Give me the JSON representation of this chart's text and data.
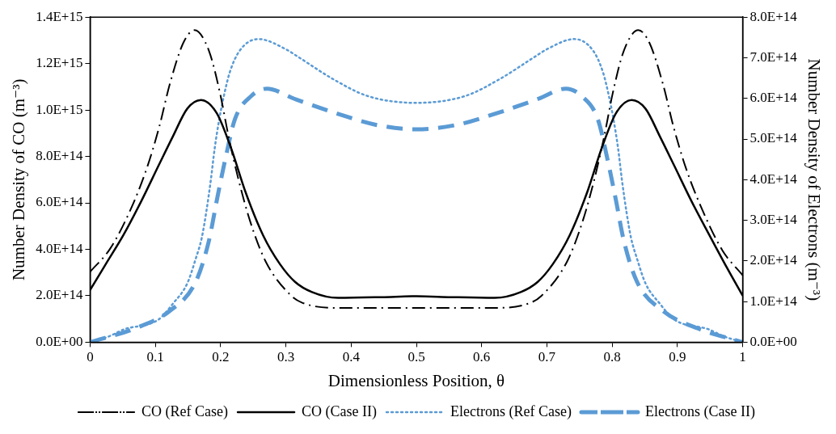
{
  "chart_data": {
    "type": "line",
    "xlabel": "Dimensionless Position, θ",
    "ylabel": "Number Density of CO (m⁻³)",
    "y2label": "Number Density of Electrons (m⁻³)",
    "legend": "bottom",
    "xlim": [
      0,
      1
    ],
    "xticks": [
      0,
      0.1,
      0.2,
      0.3,
      0.4,
      0.5,
      0.6,
      0.7,
      0.8,
      0.9,
      1
    ],
    "ylim": [
      0,
      1400000000000000.0
    ],
    "yticks": [
      {
        "value": 0,
        "label": "0.0E+00"
      },
      {
        "value": 200000000000000.0,
        "label": "2.0E+14"
      },
      {
        "value": 400000000000000.0,
        "label": "4.0E+14"
      },
      {
        "value": 600000000000000.0,
        "label": "6.0E+14"
      },
      {
        "value": 800000000000000.0,
        "label": "8.0E+14"
      },
      {
        "value": 1000000000000000.0,
        "label": "1.0E+15"
      },
      {
        "value": 1200000000000000.0,
        "label": "1.2E+15"
      },
      {
        "value": 1400000000000000.0,
        "label": "1.4E+15"
      }
    ],
    "y2lim": [
      0,
      800000000000000.0
    ],
    "y2ticks": [
      {
        "value": 0,
        "label": "0.0E+00"
      },
      {
        "value": 100000000000000.0,
        "label": "1.0E+14"
      },
      {
        "value": 200000000000000.0,
        "label": "2.0E+14"
      },
      {
        "value": 300000000000000.0,
        "label": "3.0E+14"
      },
      {
        "value": 400000000000000.0,
        "label": "4.0E+14"
      },
      {
        "value": 500000000000000.0,
        "label": "5.0E+14"
      },
      {
        "value": 600000000000000.0,
        "label": "6.0E+14"
      },
      {
        "value": 700000000000000.0,
        "label": "7.0E+14"
      },
      {
        "value": 800000000000000.0,
        "label": "8.0E+14"
      }
    ],
    "series": [
      {
        "name": "CO (Ref Case)",
        "color": "#000000",
        "line_style": "dashdot",
        "x": [
          0,
          0.031,
          0.062,
          0.087,
          0.106,
          0.122,
          0.143,
          0.16,
          0.182,
          0.199,
          0.212,
          0.227,
          0.245,
          0.269,
          0.309,
          0.325,
          0.372,
          0.5,
          0.628,
          0.675,
          0.691,
          0.731,
          0.755,
          0.773,
          0.788,
          0.801,
          0.818,
          0.84,
          0.857,
          0.878,
          0.894,
          0.913,
          0.938,
          0.969,
          1
        ],
        "values": [
          303000000000000.0,
          404000000000000.0,
          571000000000000.0,
          750000000000000.0,
          928000000000000.0,
          1110000000000000.0,
          1290000000000000.0,
          1344000000000000.0,
          1256000000000000.0,
          1074000000000000.0,
          889000000000000.0,
          705000000000000.0,
          523000000000000.0,
          348000000000000.0,
          198000000000000.0,
          170000000000000.0,
          148000000000000.0,
          148000000000000.0,
          148000000000000.0,
          170000000000000.0,
          198000000000000.0,
          348000000000000.0,
          523000000000000.0,
          705000000000000.0,
          889000000000000.0,
          1074000000000000.0,
          1256000000000000.0,
          1344000000000000.0,
          1290000000000000.0,
          1110000000000000.0,
          928000000000000.0,
          750000000000000.0,
          571000000000000.0,
          395000000000000.0,
          288000000000000.0
        ]
      },
      {
        "name": "CO (Case II)",
        "color": "#000000",
        "line_style": "solid",
        "x": [
          0,
          0.024,
          0.051,
          0.078,
          0.105,
          0.127,
          0.149,
          0.17,
          0.194,
          0.216,
          0.238,
          0.265,
          0.291,
          0.314,
          0.34,
          0.38,
          0.447,
          0.5,
          0.553,
          0.62,
          0.66,
          0.686,
          0.709,
          0.735,
          0.762,
          0.784,
          0.806,
          0.83,
          0.851,
          0.873,
          0.895,
          0.922,
          0.949,
          0.976,
          1
        ],
        "values": [
          225000000000000.0,
          336000000000000.0,
          461000000000000.0,
          605000000000000.0,
          761000000000000.0,
          887000000000000.0,
          1006000000000000.0,
          1043000000000000.0,
          987000000000000.0,
          836000000000000.0,
          648000000000000.0,
          461000000000000.0,
          336000000000000.0,
          260000000000000.0,
          216000000000000.0,
          191000000000000.0,
          194000000000000.0,
          198000000000000.0,
          194000000000000.0,
          191000000000000.0,
          216000000000000.0,
          260000000000000.0,
          336000000000000.0,
          461000000000000.0,
          648000000000000.0,
          836000000000000.0,
          987000000000000.0,
          1043000000000000.0,
          1006000000000000.0,
          887000000000000.0,
          761000000000000.0,
          605000000000000.0,
          461000000000000.0,
          320000000000000.0,
          200000000000000.0
        ]
      },
      {
        "name": "Electrons (Ref Case)",
        "color": "#5b9bd5",
        "line_style": "dotted",
        "axis": "y2",
        "x": [
          0,
          0.03,
          0.051,
          0.105,
          0.127,
          0.149,
          0.162,
          0.171,
          0.178,
          0.185,
          0.191,
          0.198,
          0.205,
          0.214,
          0.229,
          0.258,
          0.3,
          0.318,
          0.374,
          0.425,
          0.5,
          0.575,
          0.626,
          0.682,
          0.7,
          0.742,
          0.771,
          0.786,
          0.795,
          0.802,
          0.809,
          0.815,
          0.822,
          0.829,
          0.838,
          0.851,
          0.873,
          0.895,
          0.949,
          0.97,
          1
        ],
        "values": [
          0,
          15000000000000.0,
          31000000000000.0,
          56000000000000.0,
          95000000000000.0,
          145000000000000.0,
          206000000000000.0,
          256000000000000.0,
          320000000000000.0,
          399000000000000.0,
          478000000000000.0,
          549000000000000.0,
          606000000000000.0,
          664000000000000.0,
          717000000000000.0,
          746000000000000.0,
          721000000000000.0,
          703000000000000.0,
          646000000000000.0,
          606000000000000.0,
          589000000000000.0,
          606000000000000.0,
          646000000000000.0,
          703000000000000.0,
          721000000000000.0,
          746000000000000.0,
          717000000000000.0,
          664000000000000.0,
          606000000000000.0,
          549000000000000.0,
          478000000000000.0,
          399000000000000.0,
          320000000000000.0,
          256000000000000.0,
          206000000000000.0,
          145000000000000.0,
          95000000000000.0,
          56000000000000.0,
          31000000000000.0,
          15000000000000.0,
          0
        ]
      },
      {
        "name": "Electrons (Case II)",
        "color": "#5b9bd5",
        "line_style": "dashed",
        "axis": "y2",
        "x": [
          0,
          0.069,
          0.122,
          0.162,
          0.182,
          0.195,
          0.207,
          0.222,
          0.247,
          0.271,
          0.313,
          0.376,
          0.438,
          0.5,
          0.562,
          0.624,
          0.687,
          0.729,
          0.753,
          0.778,
          0.793,
          0.805,
          0.818,
          0.838,
          0.878,
          0.931,
          1
        ],
        "values": [
          0,
          34000000000000.0,
          77000000000000.0,
          149000000000000.0,
          249000000000000.0,
          356000000000000.0,
          449000000000000.0,
          549000000000000.0,
          606000000000000.0,
          624000000000000.0,
          599000000000000.0,
          564000000000000.0,
          535000000000000.0,
          524000000000000.0,
          535000000000000.0,
          564000000000000.0,
          599000000000000.0,
          624000000000000.0,
          606000000000000.0,
          549000000000000.0,
          449000000000000.0,
          356000000000000.0,
          249000000000000.0,
          149000000000000.0,
          77000000000000.0,
          34000000000000.0,
          0
        ]
      }
    ]
  }
}
